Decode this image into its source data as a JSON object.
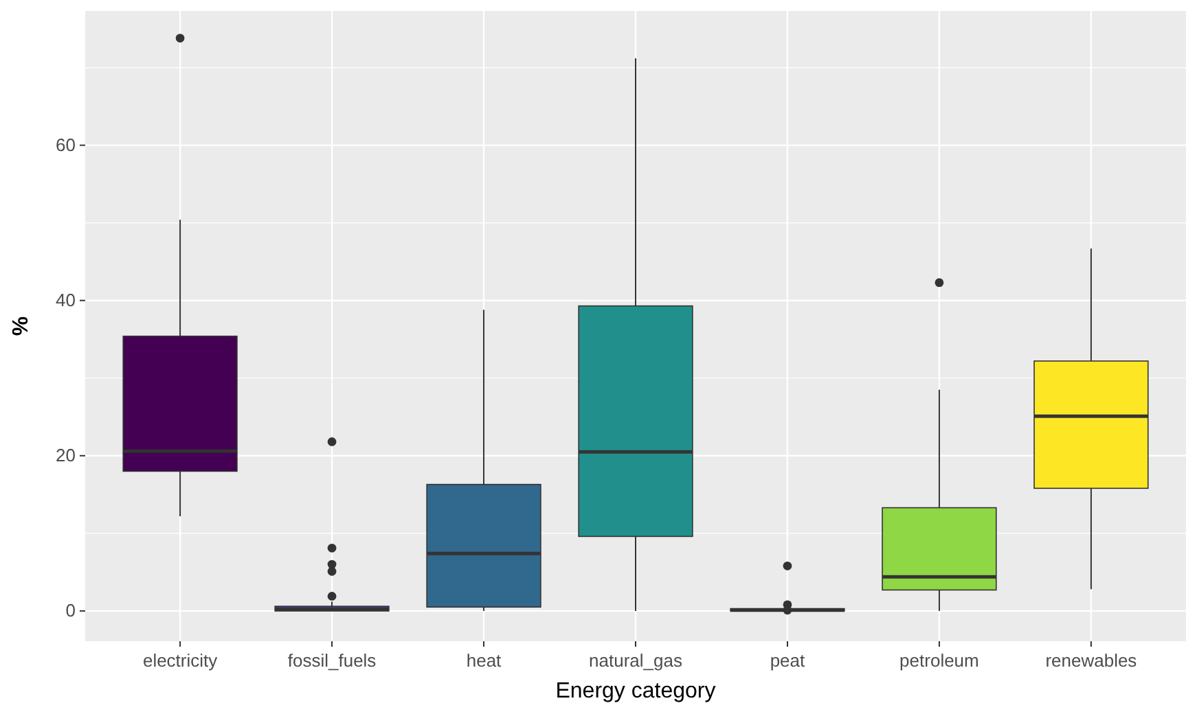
{
  "chart_data": {
    "type": "box",
    "xlabel": "Energy category",
    "ylabel": "%",
    "categories": [
      "electricity",
      "fossil_fuels",
      "heat",
      "natural_gas",
      "peat",
      "petroleum",
      "renewables"
    ],
    "colors": [
      "#440154",
      "#443a83",
      "#31688e",
      "#21908c",
      "#35b779",
      "#8fd744",
      "#fde725"
    ],
    "boxes": [
      {
        "low": 12.2,
        "q1": 18,
        "median": 20.6,
        "q3": 35.4,
        "high": 50.4,
        "outliers": [
          73.8
        ]
      },
      {
        "low": 0,
        "q1": 0,
        "median": 0.2,
        "q3": 0.6,
        "high": 1.2,
        "outliers": [
          21.8,
          8.1,
          6,
          5.1,
          1.9
        ]
      },
      {
        "low": 0,
        "q1": 0.5,
        "median": 7.4,
        "q3": 16.3,
        "high": 38.8
      },
      {
        "low": 0,
        "q1": 9.6,
        "median": 20.5,
        "q3": 39.3,
        "high": 71.2
      },
      {
        "low": 0,
        "q1": 0,
        "median": 0.1,
        "q3": 0.3,
        "high": 0.5,
        "outliers": [
          5.8,
          0.8,
          0.1
        ]
      },
      {
        "low": 0,
        "q1": 2.7,
        "median": 4.4,
        "q3": 13.3,
        "high": 28.5,
        "outliers": [
          42.3
        ]
      },
      {
        "low": 2.8,
        "q1": 15.8,
        "median": 25.1,
        "q3": 32.2,
        "high": 46.7
      }
    ],
    "ylim": [
      -3.9,
      77.3
    ],
    "yticks": [
      0,
      20,
      40,
      60
    ],
    "grid": true
  }
}
